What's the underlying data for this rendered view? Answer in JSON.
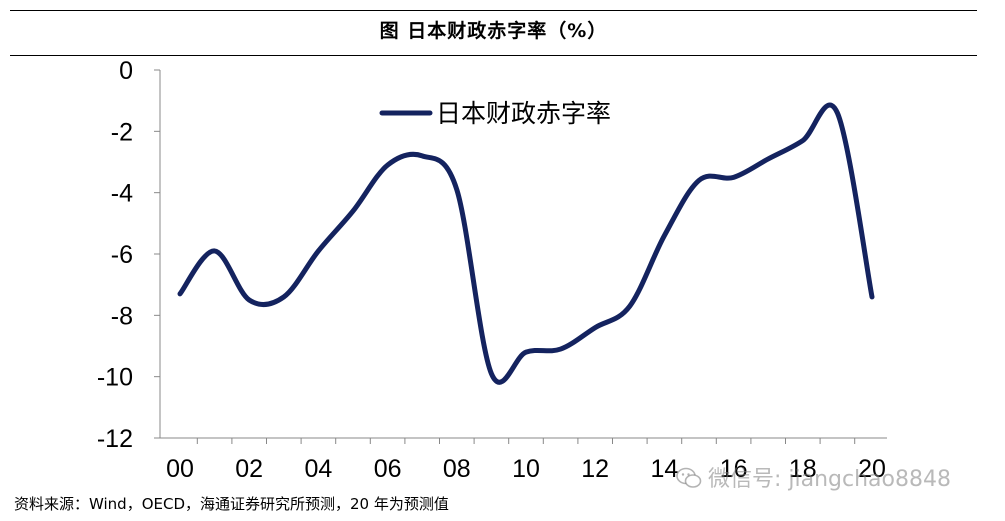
{
  "title": "图  日本财政赤字率（%）",
  "source": "资料来源：Wind，OECD，海通证券研究所预测，20 年为预测值",
  "watermark": "微信号: jiangchao8848",
  "colors": {
    "line": "#14235f",
    "axis": "#888888",
    "text": "#000000"
  },
  "chart_data": {
    "type": "line",
    "title": "图  日本财政赤字率（%）",
    "xlabel": "",
    "ylabel": "",
    "x": [
      2000,
      2001,
      2002,
      2003,
      2004,
      2005,
      2006,
      2007,
      2008,
      2009,
      2010,
      2011,
      2012,
      2013,
      2014,
      2015,
      2016,
      2017,
      2018,
      2019,
      2020
    ],
    "x_ticks": [
      "00",
      "02",
      "04",
      "06",
      "08",
      "10",
      "12",
      "14",
      "16",
      "18",
      "20"
    ],
    "y_ticks": [
      0,
      -2,
      -4,
      -6,
      -8,
      -10,
      -12
    ],
    "ylim": [
      -12,
      0
    ],
    "legend": "top-left, inside plot",
    "grid": false,
    "series": [
      {
        "name": "日本财政赤字率",
        "values": [
          -7.3,
          -5.9,
          -7.5,
          -7.4,
          -5.9,
          -4.6,
          -3.1,
          -2.8,
          -3.9,
          -9.9,
          -9.2,
          -9.1,
          -8.4,
          -7.7,
          -5.4,
          -3.6,
          -3.5,
          -2.9,
          -2.3,
          -1.4,
          -7.4
        ]
      }
    ]
  }
}
